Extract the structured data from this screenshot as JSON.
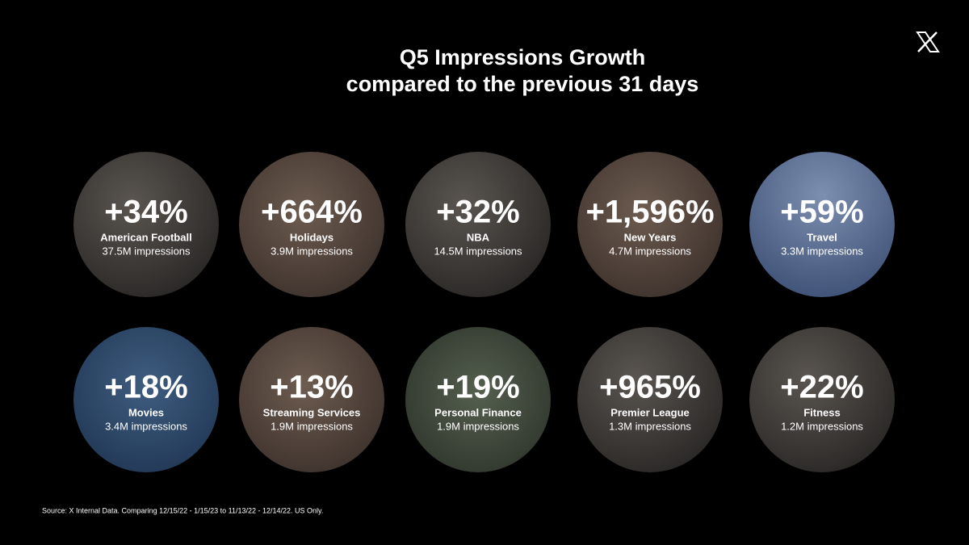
{
  "header": {
    "title_line1": "Q5 Impressions Growth",
    "title_line2": "compared to the previous 31 days"
  },
  "items": [
    {
      "growth": "+34%",
      "name": "American Football",
      "impressions": "37.5M impressions"
    },
    {
      "growth": "+664%",
      "name": "Holidays",
      "impressions": "3.9M impressions"
    },
    {
      "growth": "+32%",
      "name": "NBA",
      "impressions": "14.5M impressions"
    },
    {
      "growth": "+1,596%",
      "name": "New Years",
      "impressions": "4.7M impressions"
    },
    {
      "growth": "+59%",
      "name": "Travel",
      "impressions": "3.3M impressions"
    },
    {
      "growth": "+18%",
      "name": "Movies",
      "impressions": "3.4M impressions"
    },
    {
      "growth": "+13%",
      "name": "Streaming Services",
      "impressions": "1.9M impressions"
    },
    {
      "growth": "+19%",
      "name": "Personal Finance",
      "impressions": "1.9M impressions"
    },
    {
      "growth": "+965%",
      "name": "Premier League",
      "impressions": "1.3M impressions"
    },
    {
      "growth": "+22%",
      "name": "Fitness",
      "impressions": "1.2M impressions"
    }
  ],
  "footer": {
    "source": "Source: X Internal Data. Comparing 12/15/22 - 1/15/23 to 11/13/22 - 12/14/22. US Only."
  }
}
